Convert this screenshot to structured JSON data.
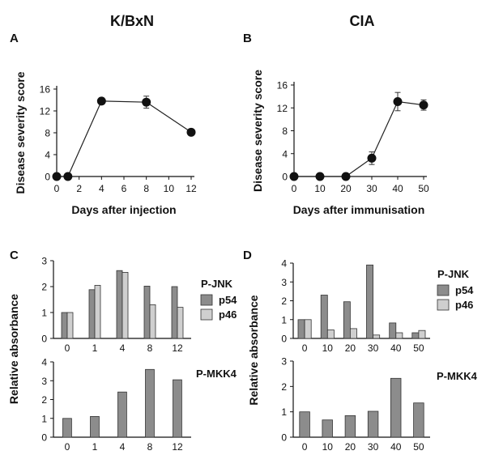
{
  "titles": {
    "left": "K/BxN",
    "right": "CIA"
  },
  "chart_data": [
    {
      "id": "A",
      "type": "line",
      "panel_label": "A",
      "xlabel": "Days after injection",
      "ylabel": "Disease severity score",
      "xlim": [
        0,
        12
      ],
      "ylim": [
        0,
        16
      ],
      "xticks": [
        0,
        2,
        4,
        6,
        8,
        10,
        12
      ],
      "yticks": [
        0,
        4,
        8,
        12,
        16
      ],
      "x": [
        0,
        1,
        4,
        8,
        12
      ],
      "y": [
        0,
        0,
        13.8,
        13.6,
        8.1
      ],
      "err": [
        0,
        0,
        0,
        1.1,
        0
      ]
    },
    {
      "id": "B",
      "type": "line",
      "panel_label": "B",
      "xlabel": "Days after immunisation",
      "ylabel": "Disease severity score",
      "xlim": [
        0,
        50
      ],
      "ylim": [
        0,
        16
      ],
      "xticks": [
        0,
        10,
        20,
        30,
        40,
        50
      ],
      "yticks": [
        0,
        4,
        8,
        12,
        16
      ],
      "x": [
        0,
        10,
        20,
        30,
        40,
        50
      ],
      "y": [
        0,
        0,
        0,
        3.2,
        13.1,
        12.5
      ],
      "err": [
        0,
        0,
        0,
        1.1,
        1.6,
        0.9
      ]
    },
    {
      "id": "C-top",
      "type": "bar",
      "panel_label": "C",
      "ylabel": "Relative absorbance",
      "legend_title": "P-JNK",
      "categories": [
        "0",
        "1",
        "4",
        "8",
        "12"
      ],
      "ylim": [
        0,
        3
      ],
      "yticks": [
        0,
        1,
        2,
        3
      ],
      "series": [
        {
          "name": "p54",
          "color": "#8c8c8c",
          "values": [
            1.0,
            1.88,
            2.62,
            2.02,
            2.0
          ]
        },
        {
          "name": "p46",
          "color": "#cfcfcf",
          "values": [
            1.0,
            2.05,
            2.55,
            1.3,
            1.2
          ]
        }
      ]
    },
    {
      "id": "C-bottom",
      "type": "bar",
      "label": "P-MKK4",
      "categories": [
        "0",
        "1",
        "4",
        "8",
        "12"
      ],
      "ylim": [
        0,
        4
      ],
      "yticks": [
        0,
        1,
        2,
        3,
        4
      ],
      "series": [
        {
          "color": "#8c8c8c",
          "values": [
            1.0,
            1.1,
            2.4,
            3.6,
            3.05
          ]
        }
      ]
    },
    {
      "id": "D-top",
      "type": "bar",
      "panel_label": "D",
      "ylabel": "Relative absorbance",
      "legend_title": "P-JNK",
      "categories": [
        "0",
        "10",
        "20",
        "30",
        "40",
        "50"
      ],
      "ylim": [
        0,
        4
      ],
      "yticks": [
        0,
        1,
        2,
        3,
        4
      ],
      "series": [
        {
          "name": "p54",
          "color": "#8c8c8c",
          "values": [
            1.0,
            2.3,
            1.95,
            3.9,
            0.82,
            0.3
          ]
        },
        {
          "name": "p46",
          "color": "#cfcfcf",
          "values": [
            1.0,
            0.45,
            0.52,
            0.18,
            0.3,
            0.42
          ]
        }
      ]
    },
    {
      "id": "D-bottom",
      "type": "bar",
      "label": "P-MKK4",
      "categories": [
        "0",
        "10",
        "20",
        "30",
        "40",
        "50"
      ],
      "ylim": [
        0,
        3
      ],
      "yticks": [
        0,
        1,
        2,
        3
      ],
      "series": [
        {
          "color": "#8c8c8c",
          "values": [
            1.0,
            0.68,
            0.85,
            1.02,
            2.32,
            1.35
          ]
        }
      ]
    }
  ]
}
